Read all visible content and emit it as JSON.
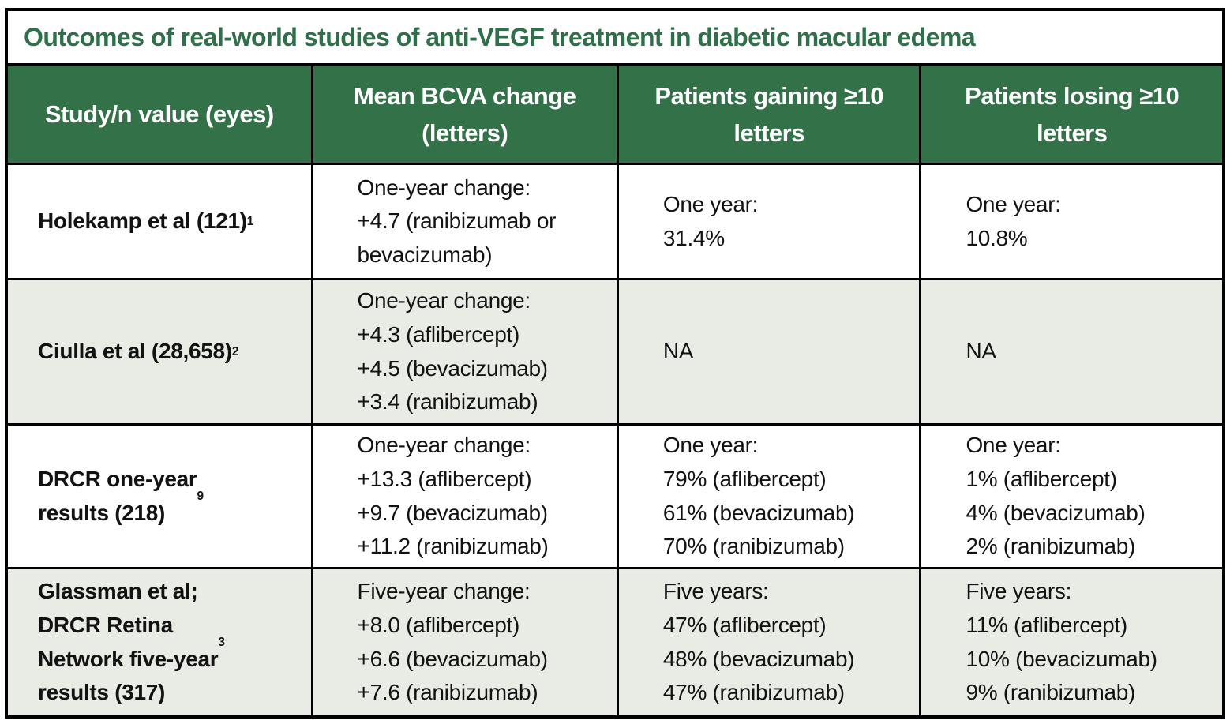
{
  "colors": {
    "header_green": "#337149",
    "title_green": "#2e7049",
    "alt_row_bg": "#e9ebe5",
    "border": "#000000",
    "text": "#121212"
  },
  "title": "Outcomes of real-world studies of anti-VEGF treatment in diabetic macular edema",
  "header": {
    "col1": "Study/n value (eyes)",
    "col2": "Mean BCVA change\n(letters)",
    "col3": "Patients gaining ≥10\nletters",
    "col4": "Patients losing ≥10\nletters"
  },
  "rows": [
    {
      "study": "Holekamp et al (121)",
      "sup": "1",
      "bcva": "One-year change:\n+4.7 (ranibizumab or\nbevacizumab)",
      "gaining": "One year:\n31.4%",
      "losing": "One year:\n10.8%"
    },
    {
      "study": "Ciulla et al (28,658)",
      "sup": "2",
      "bcva": "One-year change:\n+4.3 (aflibercept)\n+4.5 (bevacizumab)\n+3.4 (ranibizumab)",
      "gaining": "NA",
      "losing": "NA"
    },
    {
      "study": "DRCR one-year\nresults (218)",
      "sup": "9",
      "bcva": "One-year change:\n+13.3 (aflibercept)\n+9.7 (bevacizumab)\n+11.2 (ranibizumab)",
      "gaining": "One year:\n79% (aflibercept)\n61% (bevacizumab)\n70% (ranibizumab)",
      "losing": "One year:\n1% (aflibercept)\n4% (bevacizumab)\n2% (ranibizumab)"
    },
    {
      "study": "Glassman et al;\nDRCR Retina\nNetwork five-year\nresults (317)",
      "sup": "3",
      "bcva": "Five-year change:\n+8.0 (aflibercept)\n+6.6 (bevacizumab)\n+7.6 (ranibizumab)",
      "gaining": "Five years:\n47% (aflibercept)\n48% (bevacizumab)\n47% (ranibizumab)",
      "losing": "Five years:\n11% (aflibercept)\n10% (bevacizumab)\n9% (ranibizumab)"
    }
  ]
}
